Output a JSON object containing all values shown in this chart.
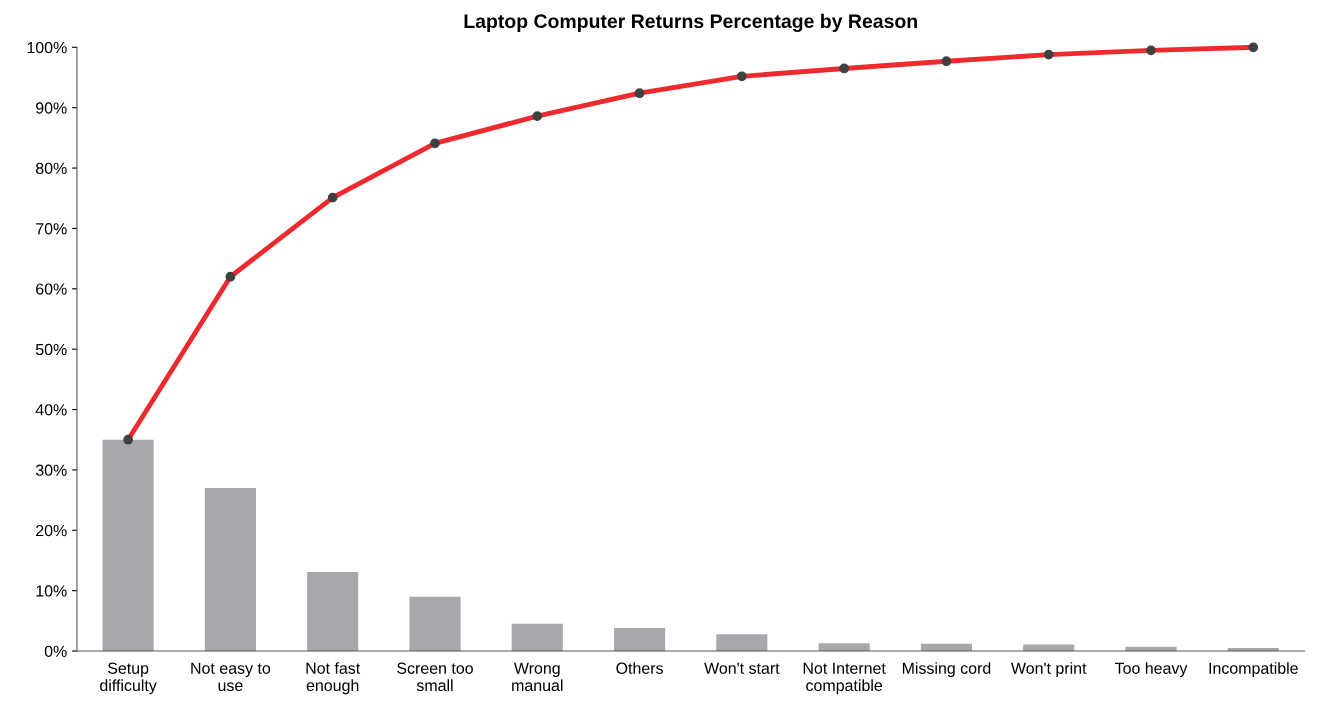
{
  "chart_data": {
    "type": "bar",
    "title": "Laptop Computer Returns Percentage by Reason",
    "categories": [
      "Setup\ndifficulty",
      "Not easy to\nuse",
      "Not fast\nenough",
      "Screen too\nsmall",
      "Wrong\nmanual",
      "Others",
      "Won't start",
      "Not Internet\ncompatible",
      "Missing cord",
      "Won't print",
      "Too heavy",
      "Incompatible"
    ],
    "series": [
      {
        "color": "#a7a8ac",
        "values": [
          35,
          27,
          13.1,
          9,
          4.5,
          3.8,
          2.8,
          1.3,
          1.2,
          1.1,
          0.7,
          0.5
        ]
      },
      {
        "type": "line",
        "color": "#ee2a2e",
        "marker": "circle",
        "line_style": "solid",
        "values": [
          35,
          62,
          75.1,
          84.1,
          88.6,
          92.4,
          95.2,
          96.5,
          97.7,
          98.8,
          99.5,
          100
        ]
      }
    ],
    "ylim": [
      0,
      100
    ],
    "yticks": [
      {
        "value": 0,
        "label": "0%"
      },
      {
        "value": 10,
        "label": "10%"
      },
      {
        "value": 20,
        "label": "20%"
      },
      {
        "value": 30,
        "label": "30%"
      },
      {
        "value": 40,
        "label": "40%"
      },
      {
        "value": 50,
        "label": "50%"
      },
      {
        "value": 60,
        "label": "60%"
      },
      {
        "value": 70,
        "label": "70%"
      },
      {
        "value": 80,
        "label": "80%"
      },
      {
        "value": 90,
        "label": "90%"
      },
      {
        "value": 100,
        "label": "100%"
      }
    ],
    "grid": false,
    "legend": false
  }
}
